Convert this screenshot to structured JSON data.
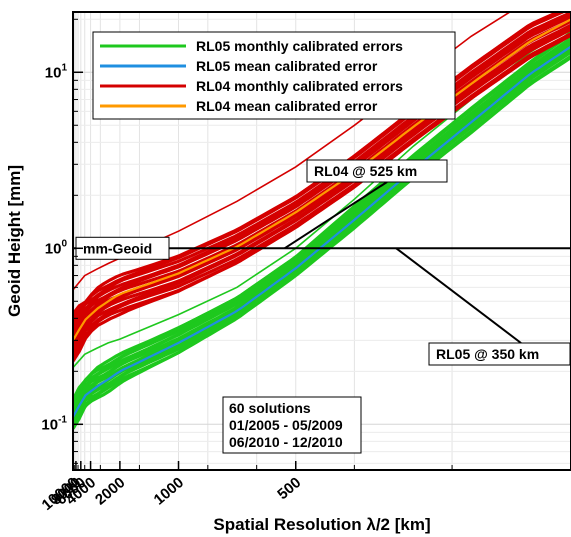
{
  "chart_data": {
    "type": "line",
    "xlabel": "Spatial Resolution λ/2 [km]",
    "ylabel": "Geoid Height [mm]",
    "x_scale": "reciprocal",
    "y_scale": "log",
    "xlim": [
      10000,
      230
    ],
    "ylim": [
      0.055,
      22
    ],
    "x_ticks": [
      10000,
      8000,
      6000,
      4000,
      2000,
      1000,
      500
    ],
    "x_tick_labels": [
      "10000",
      "8000",
      "6000",
      "4000",
      "2000",
      "1000",
      "500"
    ],
    "y_ticks": [
      0.1,
      1,
      10
    ],
    "y_tick_labels": [
      {
        "base": "10",
        "exp": "-1"
      },
      {
        "base": "10",
        "exp": "0"
      },
      {
        "base": "10",
        "exp": "1"
      }
    ],
    "grid": true,
    "legend_position": "top-left",
    "series": [
      {
        "name": "RL05 monthly calibrated errors",
        "color": "#1ec81e",
        "kind": "band",
        "x": [
          10000,
          5000,
          3333,
          2500,
          2000,
          1667,
          1000,
          667,
          500,
          400,
          333,
          286,
          250,
          230
        ],
        "lower": [
          0.095,
          0.125,
          0.14,
          0.155,
          0.175,
          0.19,
          0.255,
          0.4,
          0.7,
          1.3,
          2.5,
          4.5,
          8.5,
          12
        ],
        "upper": [
          0.14,
          0.18,
          0.205,
          0.225,
          0.25,
          0.27,
          0.36,
          0.53,
          0.9,
          1.75,
          3.4,
          6.3,
          11.5,
          17
        ],
        "outer_x": [
          10000,
          5000,
          3333,
          2500,
          2000,
          1000,
          667,
          500,
          400,
          333,
          286,
          250,
          230
        ],
        "outer_y": [
          0.21,
          0.25,
          0.27,
          0.29,
          0.305,
          0.42,
          0.6,
          1.0,
          1.9,
          3.8,
          7.0,
          13,
          18
        ]
      },
      {
        "name": "RL05 mean calibrated error",
        "color": "#1f8fe0",
        "kind": "line",
        "x": [
          10000,
          5000,
          3333,
          2500,
          2000,
          1667,
          1000,
          667,
          500,
          400,
          333,
          286,
          250,
          230
        ],
        "y": [
          0.11,
          0.145,
          0.163,
          0.18,
          0.2,
          0.215,
          0.29,
          0.44,
          0.77,
          1.45,
          2.8,
          5.2,
          9.8,
          14
        ]
      },
      {
        "name": "RL04 monthly calibrated errors",
        "color": "#d40000",
        "kind": "band",
        "x": [
          10000,
          5000,
          3333,
          2500,
          2000,
          1667,
          1000,
          667,
          500,
          400,
          333,
          286,
          250,
          230
        ],
        "lower": [
          0.23,
          0.3,
          0.36,
          0.4,
          0.43,
          0.46,
          0.57,
          0.82,
          1.3,
          2.2,
          4.0,
          7.0,
          12,
          16
        ],
        "upper": [
          0.43,
          0.5,
          0.58,
          0.64,
          0.7,
          0.74,
          0.92,
          1.3,
          2.0,
          3.4,
          6.2,
          11,
          19,
          24
        ],
        "outer_x": [
          10000,
          5000,
          3333,
          2500,
          2000,
          1667,
          1000,
          667,
          500,
          400,
          333,
          286,
          250,
          230
        ],
        "outer_y": [
          0.58,
          0.7,
          0.76,
          0.82,
          0.88,
          0.95,
          1.25,
          1.85,
          2.9,
          5.0,
          9.0,
          16,
          26,
          32
        ]
      },
      {
        "name": "RL04 mean calibrated error",
        "color": "#ff9900",
        "kind": "line",
        "x": [
          10000,
          5000,
          3333,
          2500,
          2000,
          1667,
          1000,
          667,
          500,
          400,
          333,
          286,
          250,
          230
        ],
        "y": [
          0.3,
          0.39,
          0.45,
          0.5,
          0.55,
          0.58,
          0.72,
          1.02,
          1.6,
          2.7,
          4.9,
          8.6,
          15,
          20
        ]
      }
    ],
    "reference_line": {
      "label": "mm-Geoid",
      "y": 1
    },
    "annotations": [
      {
        "label": "RL04 @ 525 km",
        "x": 525,
        "y": 1
      },
      {
        "label": "RL05 @ 350 km",
        "x": 350,
        "y": 1
      }
    ],
    "info_box": [
      "60 solutions",
      "01/2005 - 05/2009",
      "06/2010 - 12/2010"
    ]
  }
}
